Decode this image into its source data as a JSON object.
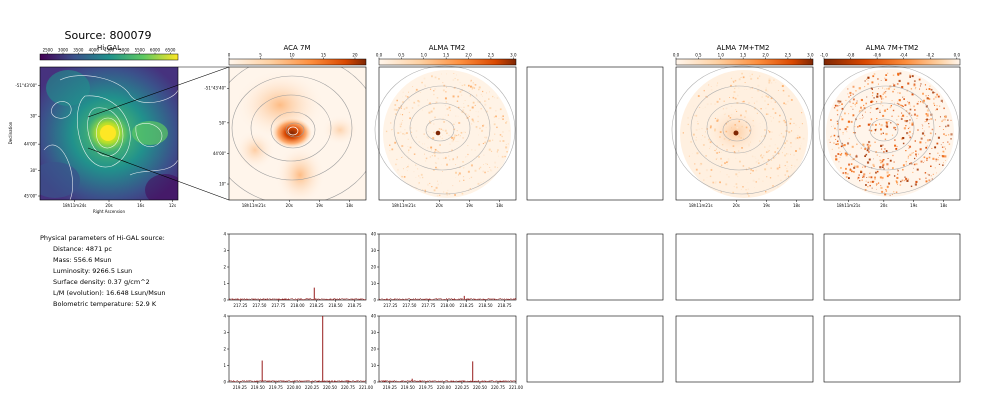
{
  "source_title": "Source: 800079",
  "params": {
    "heading": "Physical parameters of Hi-GAL source:",
    "lines": [
      "Distance: 4871 pc",
      "Mass: 556.6 Msun",
      "Luminosity: 9266.5 Lsun",
      "Surface density: 0.37 g/cm^2",
      "L/M (evolution): 16.648 Lsun/Msun",
      "Bolometric temperature: 52.9 K"
    ]
  },
  "colors": {
    "viridis": [
      "#440154",
      "#3b528b",
      "#21918c",
      "#5ec962",
      "#fde725"
    ],
    "reds": [
      "#fff5eb",
      "#fdd0a2",
      "#fd8d3c",
      "#d94801",
      "#7f2704"
    ],
    "spectrum_line": "#8b0000"
  },
  "chart_data": [
    {
      "type": "heatmap",
      "title": "Hi-GAL",
      "colorbar_ticks": [
        "2500",
        "3000",
        "3500",
        "4000",
        "4500",
        "5000",
        "5500",
        "6000",
        "6500"
      ],
      "xlabel": "Right Ascension",
      "ylabel": "Declination",
      "x_ticks": [
        "18h11m24s",
        "20s",
        "16s",
        "12s"
      ],
      "y_ticks": [
        "-51°43'00\"",
        "30\"",
        "44'00\"",
        "30\"",
        "45'00\""
      ]
    },
    {
      "type": "heatmap",
      "title": "ACA 7M",
      "colorbar_ticks": [
        "0",
        "5",
        "10",
        "15",
        "20"
      ],
      "x_ticks": [
        "18h11m21s",
        "20s",
        "19s",
        "18s"
      ],
      "y_ticks": [
        "-51°43'40\"",
        "50\"",
        "44'00\"",
        "10\""
      ]
    },
    {
      "type": "heatmap",
      "title": "ALMA TM2",
      "colorbar_ticks": [
        "0.0",
        "0.5",
        "1.0",
        "1.5",
        "2.0",
        "2.5",
        "3.0"
      ],
      "x_ticks": [
        "18h11m21s",
        "20s",
        "19s",
        "18s"
      ]
    },
    {
      "type": "heatmap",
      "title": "ALMA 7M+TM2",
      "colorbar_ticks": [
        "0.0",
        "0.5",
        "1.0",
        "1.5",
        "2.0",
        "2.5",
        "3.0"
      ],
      "x_ticks": [
        "18h11m21s",
        "20s",
        "19s",
        "18s"
      ]
    },
    {
      "type": "heatmap",
      "title": "ALMA 7M+TM2",
      "colorbar_ticks": [
        "-1.0",
        "-0.8",
        "-0.6",
        "-0.4",
        "-0.2",
        "0.0"
      ],
      "x_ticks": [
        "18h11m21s",
        "20s",
        "19s",
        "18s"
      ]
    },
    {
      "type": "line",
      "name": "ACA 7M spectrum, upper band",
      "xlim": [
        217.1,
        218.9
      ],
      "ylim": [
        0,
        4
      ],
      "x_ticks": [
        "217.25",
        "217.50",
        "217.75",
        "218.00",
        "218.25",
        "218.50",
        "218.75"
      ],
      "y_ticks": [
        "0",
        "1",
        "2",
        "3",
        "4"
      ],
      "baseline": 0.05,
      "peaks": [
        {
          "x": 218.22,
          "y": 0.75
        }
      ]
    },
    {
      "type": "line",
      "name": "ALMA TM2 spectrum, upper band",
      "xlim": [
        217.1,
        218.9
      ],
      "ylim": [
        0,
        40
      ],
      "x_ticks": [
        "217.25",
        "217.50",
        "217.75",
        "218.00",
        "218.25",
        "218.50",
        "218.75"
      ],
      "y_ticks": [
        "0",
        "10",
        "20",
        "30",
        "40"
      ],
      "baseline": 0.5,
      "peaks": [
        {
          "x": 218.22,
          "y": 2.5
        }
      ]
    },
    {
      "type": "line",
      "name": "ACA 7M spectrum, lower band",
      "xlim": [
        219.1,
        221.0
      ],
      "ylim": [
        0,
        4
      ],
      "x_ticks": [
        "219.25",
        "219.50",
        "219.75",
        "220.00",
        "220.25",
        "220.50",
        "220.75",
        "221.00"
      ],
      "y_ticks": [
        "0",
        "1",
        "2",
        "3",
        "4"
      ],
      "baseline": 0.05,
      "peaks": [
        {
          "x": 219.56,
          "y": 1.3
        },
        {
          "x": 220.4,
          "y": 4.0
        }
      ]
    },
    {
      "type": "line",
      "name": "ALMA TM2 spectrum, lower band",
      "xlim": [
        219.1,
        221.0
      ],
      "ylim": [
        0,
        40
      ],
      "x_ticks": [
        "219.25",
        "219.50",
        "219.75",
        "220.00",
        "220.25",
        "220.50",
        "220.75",
        "221.00"
      ],
      "y_ticks": [
        "0",
        "10",
        "20",
        "30",
        "40"
      ],
      "baseline": 0.5,
      "peaks": [
        {
          "x": 219.56,
          "y": 2.0
        },
        {
          "x": 220.4,
          "y": 12.5
        }
      ]
    }
  ]
}
